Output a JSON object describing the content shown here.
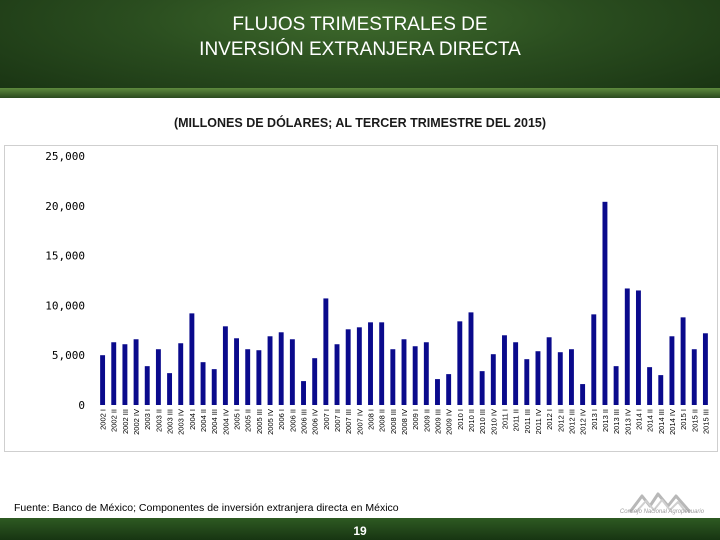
{
  "header": {
    "title_line1": "FLUJOS TRIMESTRALES DE",
    "title_line2": "INVERSIÓN EXTRANJERA DIRECTA"
  },
  "footer": {
    "source": "Fuente: Banco de México; Componentes de inversión extranjera directa en México",
    "page_number": "19",
    "logo_label": "Consejo Nacional Agropecuario"
  },
  "colors": {
    "bar": "#0a0a8c",
    "header": "#2a4d1f",
    "footer": "#1f4418"
  },
  "chart_data": {
    "type": "bar",
    "title": "",
    "subtitle": "(MILLONES DE DÓLARES; AL TERCER TRIMESTRE DEL 2015)",
    "xlabel": "",
    "ylabel": "",
    "ylim": [
      0,
      25000
    ],
    "yticks": [
      0,
      5000,
      10000,
      15000,
      20000,
      25000
    ],
    "ytick_labels": [
      "0",
      "5,000",
      "10,000",
      "15,000",
      "20,000",
      "25,000"
    ],
    "grid": false,
    "legend": "none",
    "categories": [
      "2002 I",
      "2002 II",
      "2002 III",
      "2002 IV",
      "2003 I",
      "2003 II",
      "2003 III",
      "2003 IV",
      "2004 I",
      "2004 II",
      "2004 III",
      "2004 IV",
      "2005 I",
      "2005 II",
      "2005 III",
      "2005 IV",
      "2006 I",
      "2006 II",
      "2006 III",
      "2006 IV",
      "2007 I",
      "2007 II",
      "2007 III",
      "2007 IV",
      "2008 I",
      "2008 II",
      "2008 III",
      "2008 IV",
      "2009 I",
      "2009 II",
      "2009 III",
      "2009 IV",
      "2010 I",
      "2010 II",
      "2010 III",
      "2010 IV",
      "2011 I",
      "2011 II",
      "2011 III",
      "2011 IV",
      "2012 I",
      "2012 II",
      "2012 III",
      "2012 IV",
      "2013 I",
      "2013 II",
      "2013 III",
      "2013 IV",
      "2014 I",
      "2014 II",
      "2014 III",
      "2014 IV",
      "2015 I",
      "2015 II",
      "2015 III"
    ],
    "values": [
      5000,
      6300,
      6100,
      6600,
      3900,
      5600,
      3200,
      6200,
      9200,
      4300,
      3600,
      7900,
      6700,
      5600,
      5500,
      6900,
      7300,
      6600,
      2400,
      4700,
      10700,
      6100,
      7600,
      7800,
      8300,
      8300,
      5600,
      6600,
      5900,
      6300,
      2600,
      3100,
      8400,
      9300,
      3400,
      5100,
      7000,
      6300,
      4600,
      5400,
      6800,
      5300,
      5600,
      2100,
      9100,
      20400,
      3900,
      11700,
      11500,
      3800,
      3000,
      6900,
      8800,
      5600,
      7200
    ]
  }
}
